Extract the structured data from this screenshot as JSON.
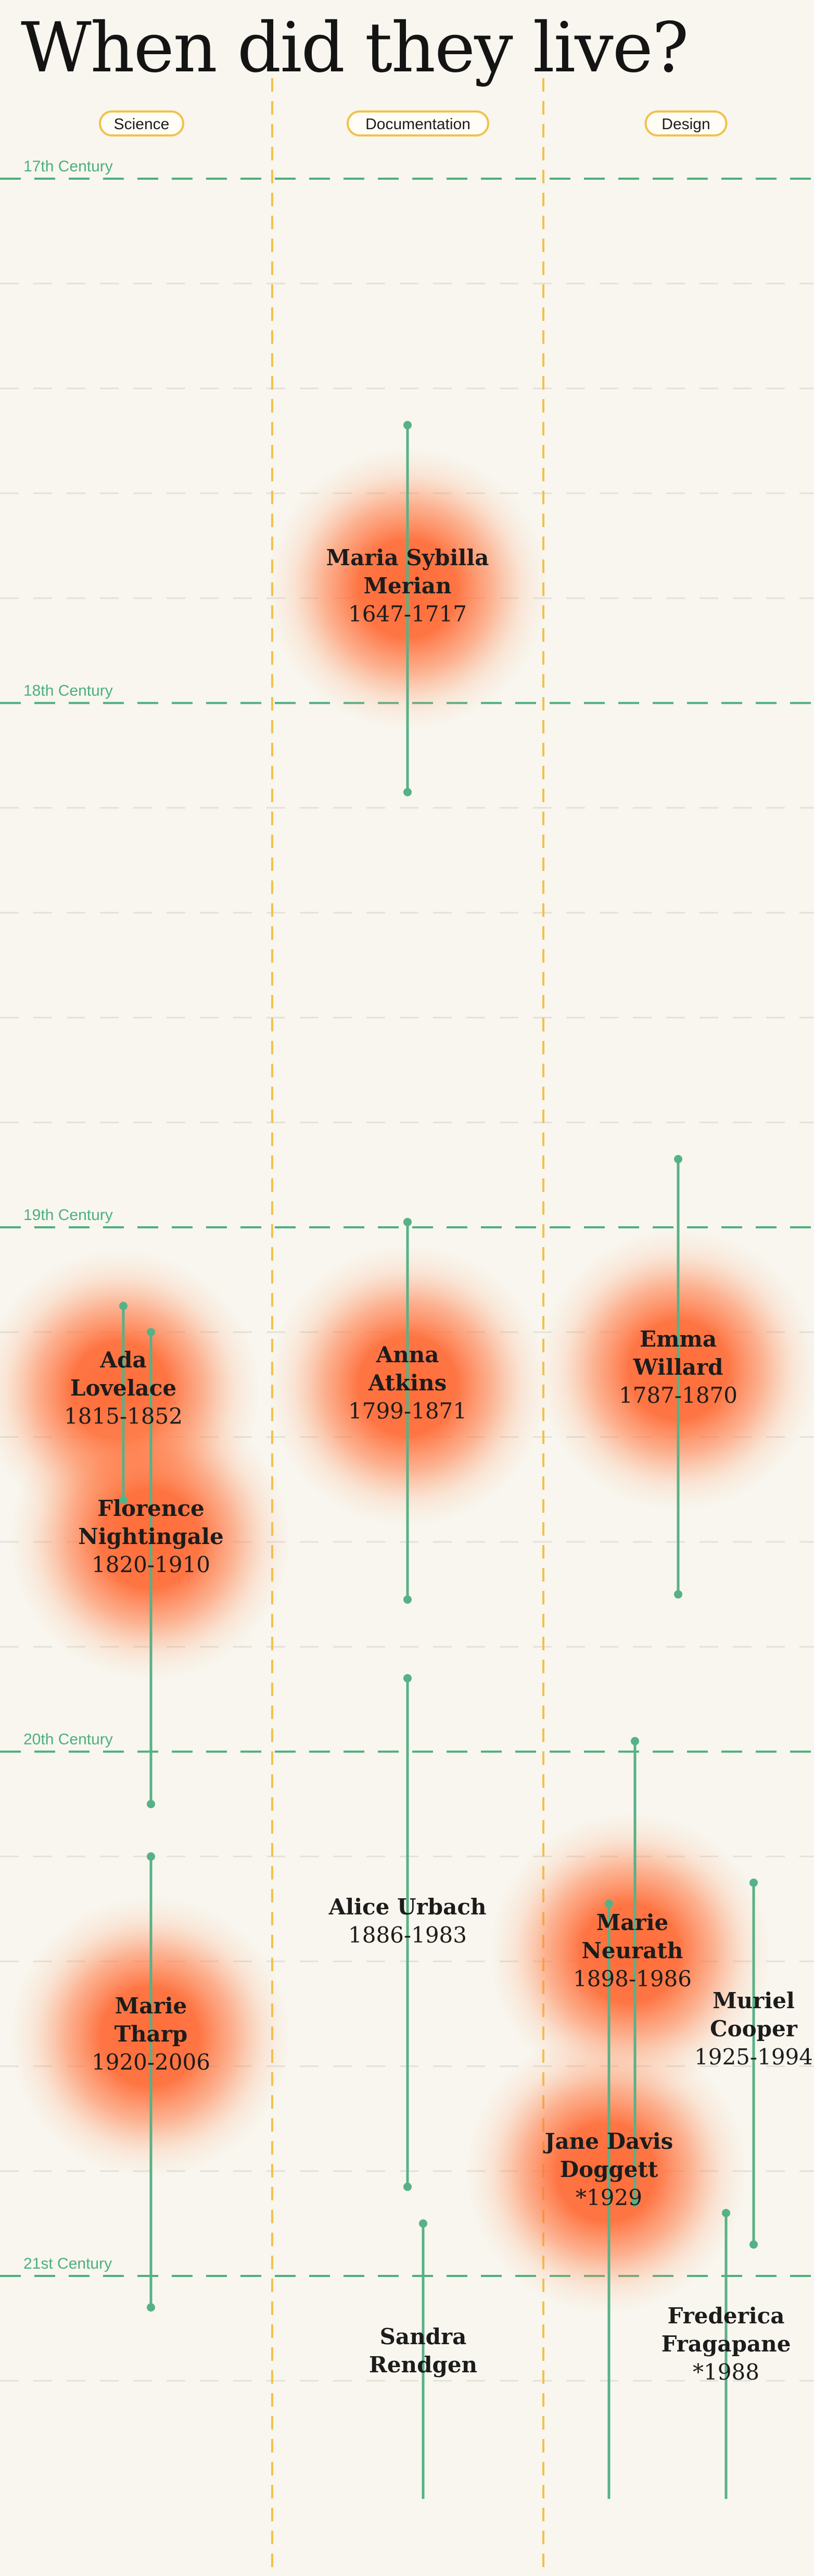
{
  "title": "When did they live?",
  "chart_data": {
    "type": "timeline",
    "title": "When did they live?",
    "y_range": [
      1605,
      2025
    ],
    "categories": [
      "Science",
      "Documentation",
      "Design"
    ],
    "centuries": [
      {
        "label": "17th Century",
        "year": 1600
      },
      {
        "label": "18th Century",
        "year": 1700
      },
      {
        "label": "19th Century",
        "year": 1800
      },
      {
        "label": "20th Century",
        "year": 1900
      },
      {
        "label": "21st Century",
        "year": 2000
      }
    ],
    "colors": {
      "lifeline": "#57b187",
      "century": "#4caf80",
      "category_divider": "#f2c14a",
      "glow": "#ff6a35",
      "pill_border": "#f2c14a",
      "background": "#f8f6ee"
    },
    "people": [
      {
        "name_lines": [
          "Maria Sybilla",
          "Merian"
        ],
        "years": "1647-1717",
        "category": "Documentation",
        "birth": 1647,
        "death": 1717,
        "living": false,
        "glow": true
      },
      {
        "name_lines": [
          "Ada",
          "Lovelace"
        ],
        "years": "1815-1852",
        "category": "Science",
        "birth": 1815,
        "death": 1852,
        "living": false,
        "glow": true
      },
      {
        "name_lines": [
          "Florence",
          "Nightingale"
        ],
        "years": "1820-1910",
        "category": "Science",
        "birth": 1820,
        "death": 1910,
        "living": false,
        "glow": true
      },
      {
        "name_lines": [
          "Anna",
          "Atkins"
        ],
        "years": "1799-1871",
        "category": "Documentation",
        "birth": 1799,
        "death": 1871,
        "living": false,
        "glow": true
      },
      {
        "name_lines": [
          "Emma",
          "Willard"
        ],
        "years": "1787-1870",
        "category": "Design",
        "birth": 1787,
        "death": 1870,
        "living": false,
        "glow": true
      },
      {
        "name_lines": [
          "Alice Urbach"
        ],
        "years": "1886-1983",
        "category": "Documentation",
        "birth": 1886,
        "death": 1983,
        "living": false,
        "glow": false
      },
      {
        "name_lines": [
          "Marie",
          "Tharp"
        ],
        "years": "1920-2006",
        "category": "Science",
        "birth": 1920,
        "death": 2006,
        "living": false,
        "glow": true
      },
      {
        "name_lines": [
          "Marie",
          "Neurath"
        ],
        "years": "1898-1986",
        "category": "Design",
        "birth": 1898,
        "death": 1986,
        "living": false,
        "glow": true
      },
      {
        "name_lines": [
          "Muriel",
          "Cooper"
        ],
        "years": "1925-1994",
        "category": "Design",
        "birth": 1925,
        "death": 1994,
        "living": false,
        "glow": false
      },
      {
        "name_lines": [
          "Jane Davis",
          "Doggett"
        ],
        "years": "*1929",
        "category": "Design",
        "birth": 1929,
        "death": null,
        "living": true,
        "glow": true
      },
      {
        "name_lines": [
          "Sandra",
          "Rendgen"
        ],
        "years": "",
        "category": "Documentation",
        "birth": 1990,
        "death": null,
        "living": true,
        "glow": false
      },
      {
        "name_lines": [
          "Frederica",
          "Fragapane"
        ],
        "years": "*1988",
        "category": "Design",
        "birth": 1988,
        "death": null,
        "living": true,
        "glow": false
      }
    ]
  }
}
